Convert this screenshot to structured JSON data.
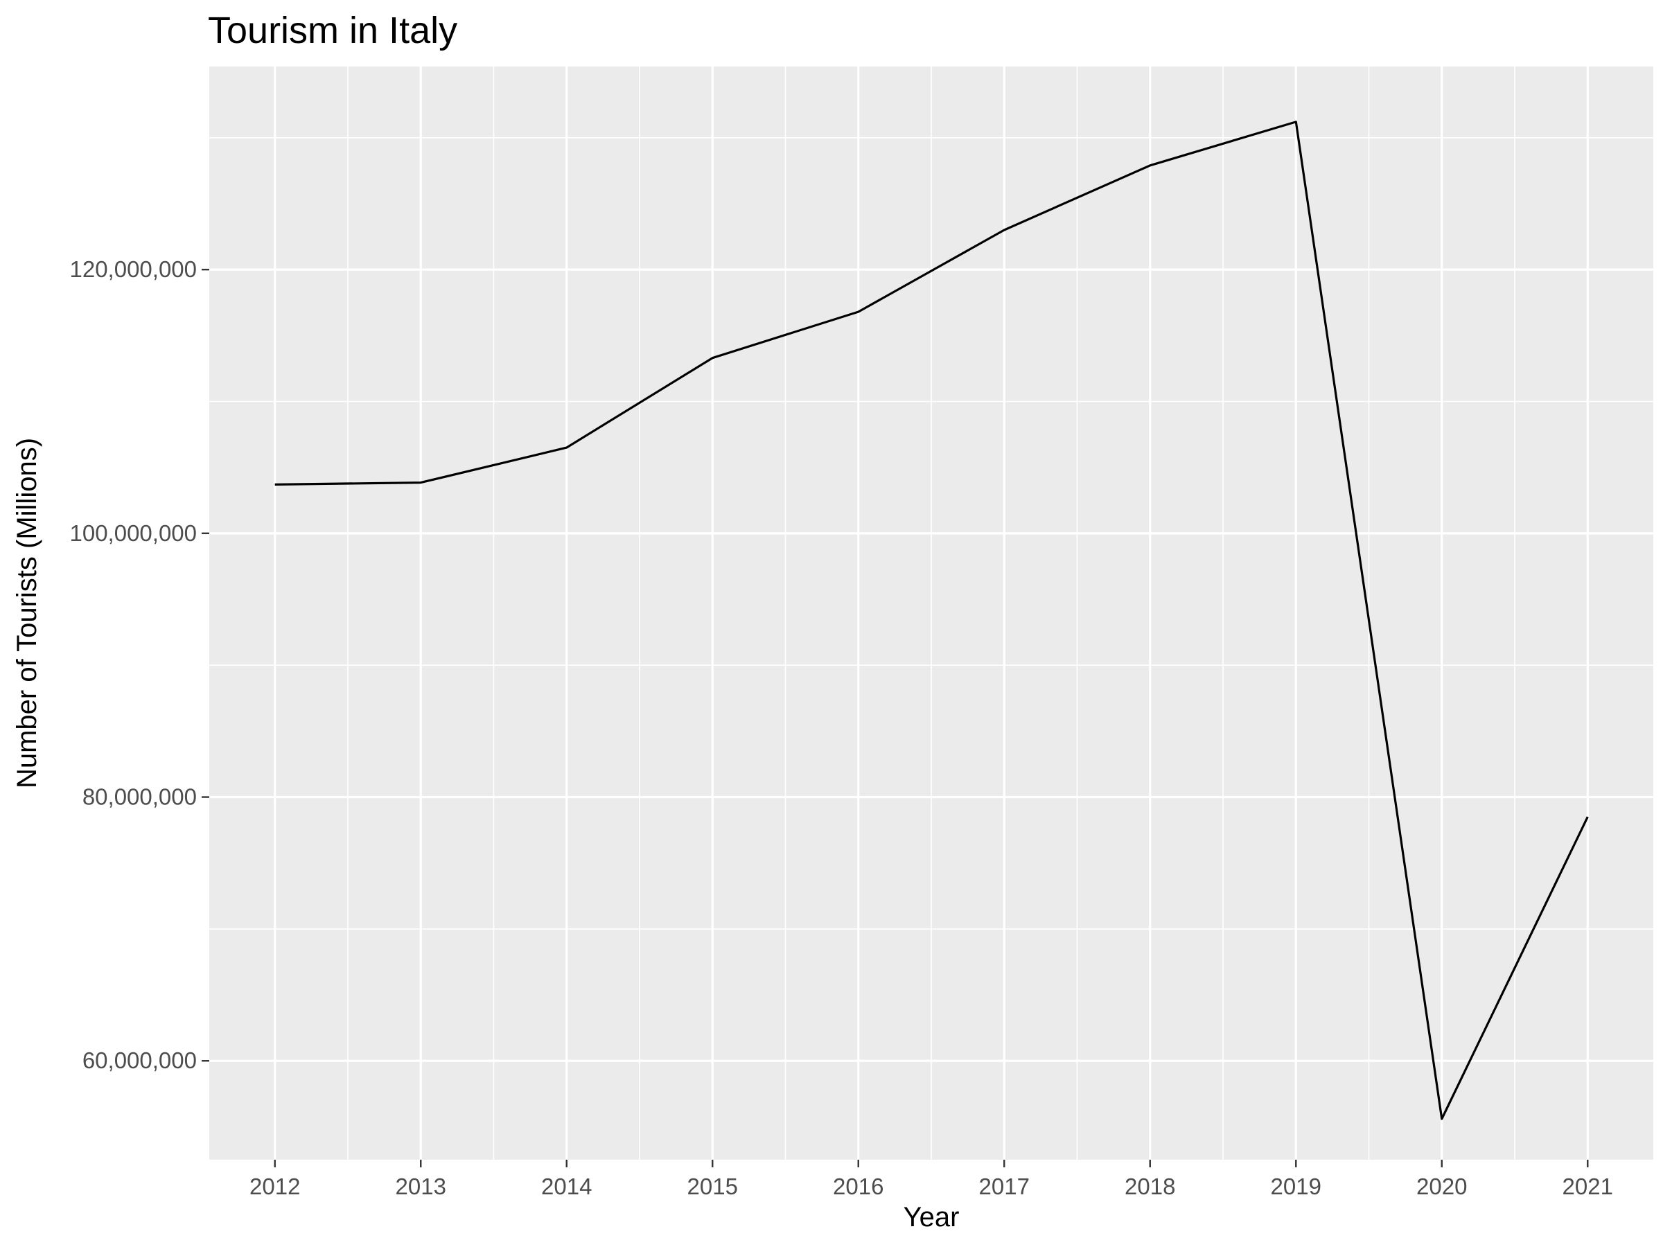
{
  "chart_data": {
    "type": "line",
    "title": "Tourism in Italy",
    "xlabel": "Year",
    "ylabel": "Number of Tourists (Millions)",
    "x": [
      2012,
      2013,
      2014,
      2015,
      2016,
      2017,
      2018,
      2019,
      2020,
      2021
    ],
    "series": [
      {
        "values": [
          103700000,
          103850000,
          106500000,
          113300000,
          116800000,
          123000000,
          127900000,
          131200000,
          55600000,
          78500000
        ]
      }
    ],
    "xlim": [
      2011.55,
      2021.45
    ],
    "ylim": [
      52500000,
      135400000
    ],
    "y_ticks": [
      60000000,
      80000000,
      100000000,
      120000000
    ],
    "y_tick_labels": [
      "60,000,000",
      "80,000,000",
      "100,000,000",
      "120,000,000"
    ],
    "x_ticks": [
      2012,
      2013,
      2014,
      2015,
      2016,
      2017,
      2018,
      2019,
      2020,
      2021
    ],
    "x_tick_labels": [
      "2012",
      "2013",
      "2014",
      "2015",
      "2016",
      "2017",
      "2018",
      "2019",
      "2020",
      "2021"
    ],
    "grid": true,
    "legend": "none",
    "colors": {
      "panel_background": "#ebebeb",
      "grid": "#ffffff",
      "line": "#000000",
      "tick_text": "#4d4d4d",
      "tick_mark": "#333333"
    }
  }
}
